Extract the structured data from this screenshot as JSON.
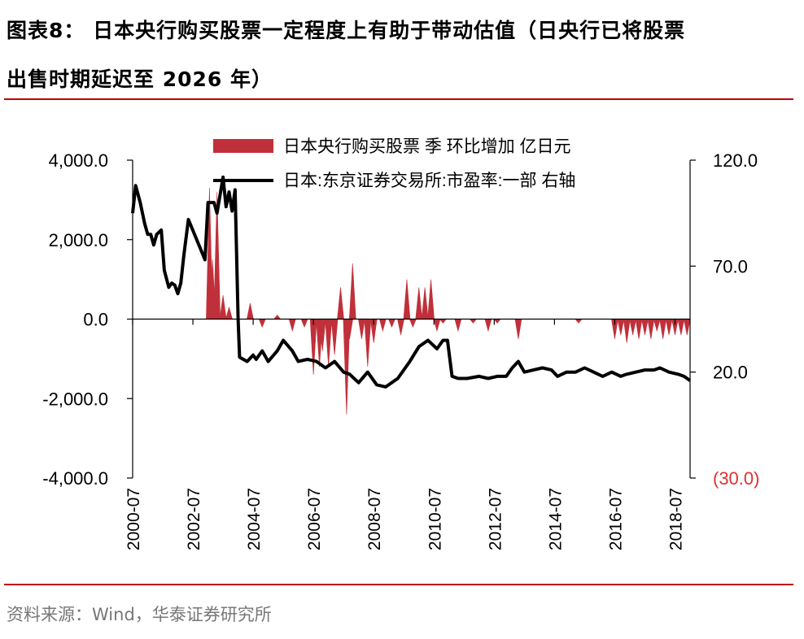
{
  "header": {
    "title_line1": "图表8： 日本央行购买股票一定程度上有助于带动估值（日央行已将股票",
    "title_line2": "出售时期延迟至 2026 年）"
  },
  "footer": {
    "source": "资料来源：Wind，华泰证券研究所"
  },
  "colors": {
    "accent": "#c00000",
    "bar": "#c0303a",
    "line": "#000000",
    "negative_label": "#e03030"
  },
  "chart_data": {
    "type": "bar+line",
    "title": "",
    "legend": [
      "日本央行购买股票 季 环比增加 亿日元",
      "日本:东京证券交易所:市盈率:一部 右轴"
    ],
    "legend_position": "top",
    "x_ticks": [
      "2000-07",
      "2002-07",
      "2004-07",
      "2006-07",
      "2008-07",
      "2010-07",
      "2012-07",
      "2014-07",
      "2016-07",
      "2018-07"
    ],
    "x_range": [
      2000.5,
      2019.0
    ],
    "y_left": {
      "range": [
        -4000,
        4000
      ],
      "ticks": [
        "4,000.0",
        "2,000.0",
        "0.0",
        "-2,000.0",
        "-4,000.0"
      ],
      "tick_values": [
        4000,
        2000,
        0,
        -2000,
        -4000
      ]
    },
    "y_right": {
      "range": [
        -30,
        120
      ],
      "ticks": [
        "120.0",
        "70.0",
        "20.0",
        "(30.0)"
      ],
      "tick_values": [
        120,
        70,
        20,
        -30
      ]
    },
    "series": [
      {
        "name": "日本央行购买股票 季 环比增加 亿日元",
        "type": "bar",
        "axis": "left",
        "points": [
          [
            2003.05,
            3300
          ],
          [
            2003.15,
            1500
          ],
          [
            2003.3,
            3200
          ],
          [
            2003.5,
            600
          ],
          [
            2003.7,
            300
          ],
          [
            2004.4,
            400
          ],
          [
            2004.8,
            -200
          ],
          [
            2005.3,
            100
          ],
          [
            2005.8,
            -300
          ],
          [
            2006.2,
            -200
          ],
          [
            2006.5,
            -1400
          ],
          [
            2006.7,
            -1200
          ],
          [
            2006.8,
            -800
          ],
          [
            2007.0,
            -1200
          ],
          [
            2007.2,
            -900
          ],
          [
            2007.4,
            800
          ],
          [
            2007.6,
            -2400
          ],
          [
            2007.7,
            -500
          ],
          [
            2007.8,
            1400
          ],
          [
            2008.1,
            -500
          ],
          [
            2008.3,
            -1200
          ],
          [
            2008.5,
            -600
          ],
          [
            2008.8,
            -300
          ],
          [
            2009.1,
            -200
          ],
          [
            2009.4,
            -400
          ],
          [
            2009.6,
            1000
          ],
          [
            2009.8,
            -200
          ],
          [
            2010.0,
            800
          ],
          [
            2010.2,
            800
          ],
          [
            2010.4,
            1000
          ],
          [
            2010.6,
            -300
          ],
          [
            2010.8,
            -100
          ],
          [
            2011.3,
            -300
          ],
          [
            2011.8,
            -100
          ],
          [
            2012.3,
            -300
          ],
          [
            2012.6,
            -100
          ],
          [
            2013.3,
            -500
          ],
          [
            2015.3,
            -100
          ],
          [
            2016.5,
            -500
          ],
          [
            2016.7,
            -400
          ],
          [
            2016.9,
            -600
          ],
          [
            2017.1,
            -400
          ],
          [
            2017.3,
            -500
          ],
          [
            2017.5,
            -400
          ],
          [
            2017.7,
            -500
          ],
          [
            2017.9,
            -300
          ],
          [
            2018.1,
            -500
          ],
          [
            2018.3,
            -400
          ],
          [
            2018.5,
            -400
          ],
          [
            2018.7,
            -400
          ],
          [
            2018.9,
            -400
          ]
        ]
      },
      {
        "name": "日本:东京证券交易所:市盈率:一部 右轴",
        "type": "line",
        "axis": "right",
        "points": [
          [
            2000.5,
            95
          ],
          [
            2000.6,
            108
          ],
          [
            2000.75,
            100
          ],
          [
            2000.9,
            90
          ],
          [
            2001.0,
            85
          ],
          [
            2001.1,
            85
          ],
          [
            2001.2,
            80
          ],
          [
            2001.3,
            85
          ],
          [
            2001.45,
            87
          ],
          [
            2001.55,
            68
          ],
          [
            2001.7,
            60
          ],
          [
            2001.8,
            62
          ],
          [
            2001.9,
            61
          ],
          [
            2002.0,
            57
          ],
          [
            2002.1,
            62
          ],
          [
            2002.2,
            75
          ],
          [
            2002.35,
            92
          ],
          [
            2002.9,
            73
          ],
          [
            2003.0,
            100
          ],
          [
            2003.2,
            100
          ],
          [
            2003.3,
            95
          ],
          [
            2003.5,
            112
          ],
          [
            2003.6,
            98
          ],
          [
            2003.7,
            105
          ],
          [
            2003.8,
            96
          ],
          [
            2003.9,
            106
          ],
          [
            2004.0,
            45
          ],
          [
            2004.05,
            27
          ],
          [
            2004.3,
            25
          ],
          [
            2004.5,
            28
          ],
          [
            2004.6,
            26
          ],
          [
            2004.8,
            30
          ],
          [
            2005.0,
            25
          ],
          [
            2005.3,
            30
          ],
          [
            2005.5,
            35
          ],
          [
            2005.8,
            30
          ],
          [
            2006.0,
            25
          ],
          [
            2006.3,
            26
          ],
          [
            2006.6,
            25
          ],
          [
            2006.9,
            22
          ],
          [
            2007.2,
            25
          ],
          [
            2007.5,
            20
          ],
          [
            2007.7,
            19
          ],
          [
            2008.0,
            15
          ],
          [
            2008.3,
            20
          ],
          [
            2008.6,
            14
          ],
          [
            2008.9,
            13
          ],
          [
            2009.3,
            17
          ],
          [
            2009.7,
            25
          ],
          [
            2010.0,
            32
          ],
          [
            2010.3,
            35
          ],
          [
            2010.6,
            31
          ],
          [
            2010.8,
            35
          ],
          [
            2010.95,
            35
          ],
          [
            2011.1,
            18
          ],
          [
            2011.3,
            17
          ],
          [
            2011.6,
            17
          ],
          [
            2012.0,
            18
          ],
          [
            2012.3,
            17
          ],
          [
            2012.6,
            18
          ],
          [
            2012.9,
            18
          ],
          [
            2013.1,
            22
          ],
          [
            2013.3,
            25
          ],
          [
            2013.5,
            20
          ],
          [
            2013.8,
            21
          ],
          [
            2014.1,
            22
          ],
          [
            2014.4,
            21
          ],
          [
            2014.6,
            18
          ],
          [
            2014.9,
            20
          ],
          [
            2015.2,
            20
          ],
          [
            2015.5,
            22
          ],
          [
            2015.8,
            20
          ],
          [
            2016.1,
            18
          ],
          [
            2016.4,
            20
          ],
          [
            2016.7,
            18
          ],
          [
            2016.9,
            19
          ],
          [
            2017.2,
            20
          ],
          [
            2017.5,
            21
          ],
          [
            2017.8,
            21
          ],
          [
            2018.0,
            22
          ],
          [
            2018.3,
            20
          ],
          [
            2018.6,
            19
          ],
          [
            2018.8,
            18
          ],
          [
            2019.0,
            16
          ]
        ]
      }
    ],
    "grid": false
  }
}
